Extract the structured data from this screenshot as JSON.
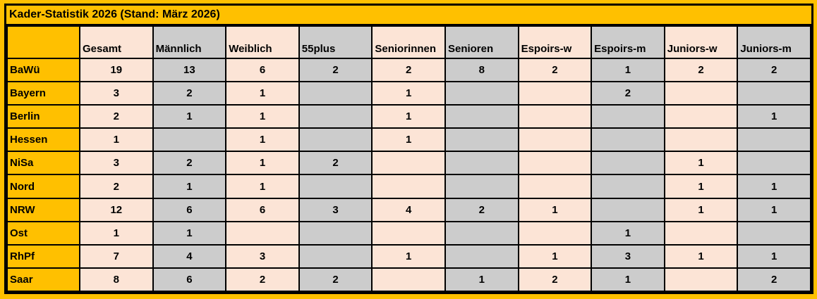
{
  "title": "Kader-Statistik 2026 (Stand: März 2026)",
  "table": {
    "columns": [
      "Gesamt",
      "Männlich",
      "Weiblich",
      "55plus",
      "Seniorinnen",
      "Senioren",
      "Espoirs-w",
      "Espoirs-m",
      "Juniors-w",
      "Juniors-m"
    ],
    "rows": [
      {
        "label": "BaWü",
        "values": [
          "19",
          "13",
          "6",
          "2",
          "2",
          "8",
          "2",
          "1",
          "2",
          "2"
        ]
      },
      {
        "label": "Bayern",
        "values": [
          "3",
          "2",
          "1",
          "",
          "1",
          "",
          "",
          "2",
          "",
          ""
        ]
      },
      {
        "label": "Berlin",
        "values": [
          "2",
          "1",
          "1",
          "",
          "1",
          "",
          "",
          "",
          "",
          "1"
        ]
      },
      {
        "label": "Hessen",
        "values": [
          "1",
          "",
          "1",
          "",
          "1",
          "",
          "",
          "",
          "",
          ""
        ]
      },
      {
        "label": "NiSa",
        "values": [
          "3",
          "2",
          "1",
          "2",
          "",
          "",
          "",
          "",
          "1",
          ""
        ]
      },
      {
        "label": "Nord",
        "values": [
          "2",
          "1",
          "1",
          "",
          "",
          "",
          "",
          "",
          "1",
          "1"
        ]
      },
      {
        "label": "NRW",
        "values": [
          "12",
          "6",
          "6",
          "3",
          "4",
          "2",
          "1",
          "",
          "1",
          "1"
        ]
      },
      {
        "label": "Ost",
        "values": [
          "1",
          "1",
          "",
          "",
          "",
          "",
          "",
          "1",
          "",
          ""
        ]
      },
      {
        "label": "RhPf",
        "values": [
          "7",
          "4",
          "3",
          "",
          "1",
          "",
          "1",
          "3",
          "1",
          "1"
        ]
      },
      {
        "label": "Saar",
        "values": [
          "8",
          "6",
          "2",
          "2",
          "",
          "1",
          "2",
          "1",
          "",
          "2"
        ]
      }
    ]
  },
  "colors": {
    "background_orange": "#FFC000",
    "column_peach": "#FCE4D6",
    "column_gray": "#CCCCCC",
    "border_black": "#000000"
  }
}
